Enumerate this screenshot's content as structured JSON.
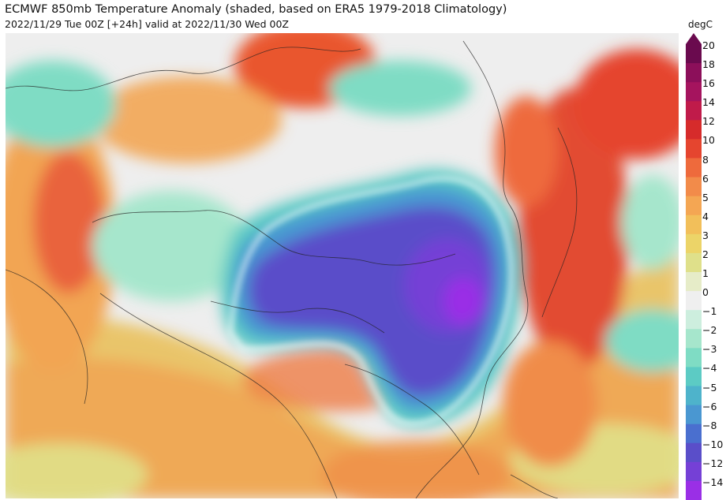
{
  "header": {
    "title": "ECMWF 850mb Temperature Anomaly (shaded, based on ERA5 1979-2018 Climatology)",
    "subtitle": "2022/11/29 Tue 00Z [+24h] valid at 2022/11/30 Wed 00Z"
  },
  "colorbar": {
    "unit": "degC",
    "labels": [
      "20",
      "18",
      "16",
      "14",
      "12",
      "10",
      "8",
      "6",
      "5",
      "4",
      "3",
      "2",
      "1",
      "0",
      "−1",
      "−2",
      "−3",
      "−4",
      "−5",
      "−6",
      "−8",
      "−10",
      "−12",
      "−14"
    ],
    "colors": [
      "#6a0a4e",
      "#8c0f5a",
      "#a5145e",
      "#c01b4a",
      "#d62b2b",
      "#e5452f",
      "#ee6a3c",
      "#f28b4a",
      "#f4a653",
      "#f2bf5a",
      "#ecd468",
      "#dfe08a",
      "#e6ecc8",
      "#efefef",
      "#cdeede",
      "#a6e6cc",
      "#7fdcc4",
      "#5ccbc4",
      "#4eb3cb",
      "#4a97d1",
      "#4a6fcf",
      "#5a4ec9",
      "#7540d6",
      "#9a2fe6"
    ]
  }
}
